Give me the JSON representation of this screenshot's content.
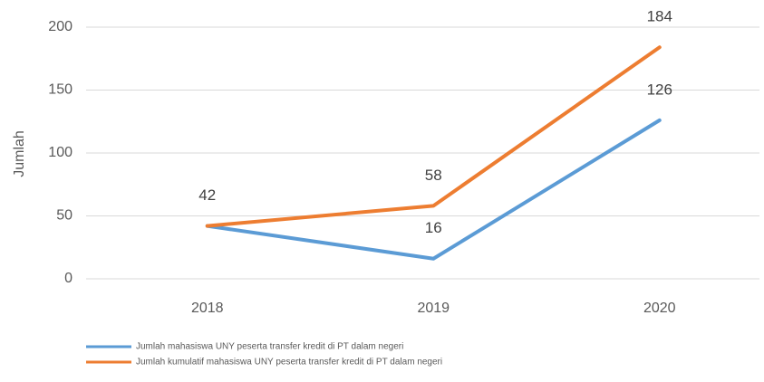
{
  "chart_data": {
    "type": "line",
    "y_label": "Jumlah",
    "categories": [
      "2018",
      "2019",
      "2020"
    ],
    "series": [
      {
        "name": "Jumlah mahasiswa UNY peserta transfer kredit di PT dalam negeri",
        "color": "#5b9bd5",
        "values": [
          42,
          16,
          126
        ]
      },
      {
        "name": "Jumlah kumulatif mahasiswa UNY peserta transfer kredit di PT dalam negeri",
        "color": "#ed7d31",
        "values": [
          42,
          58,
          184
        ]
      }
    ],
    "ylim": [
      0,
      200
    ],
    "yticks": [
      0,
      50,
      100,
      150,
      200
    ],
    "grid": true,
    "legend": "bottom-left"
  }
}
